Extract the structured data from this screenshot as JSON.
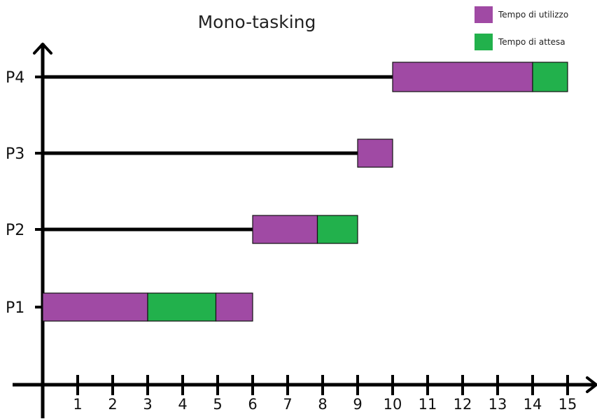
{
  "chart_data": {
    "type": "gantt",
    "title": "Mono-tasking",
    "x_ticks": [
      "1",
      "2",
      "3",
      "4",
      "5",
      "6",
      "7",
      "8",
      "9",
      "10",
      "11",
      "12",
      "13",
      "14",
      "15"
    ],
    "xlim": [
      0,
      15
    ],
    "legend_placement": "top-right",
    "legend": [
      {
        "key": "use",
        "label": "Tempo di utilizzo",
        "color": "#a04aa4"
      },
      {
        "key": "wait",
        "label": "Tempo di attesa",
        "color": "#22b14c"
      }
    ],
    "processes": [
      {
        "name": "P4",
        "arrival": 0,
        "segments": [
          {
            "type": "use",
            "start": 10,
            "end": 14
          },
          {
            "type": "wait",
            "start": 14,
            "end": 15
          }
        ]
      },
      {
        "name": "P3",
        "arrival": 0,
        "segments": [
          {
            "type": "use",
            "start": 9,
            "end": 10
          }
        ]
      },
      {
        "name": "P2",
        "arrival": 0,
        "segments": [
          {
            "type": "use",
            "start": 6,
            "end": 7.85
          },
          {
            "type": "wait",
            "start": 7.85,
            "end": 9
          }
        ]
      },
      {
        "name": "P1",
        "arrival": 0,
        "segments": [
          {
            "type": "use",
            "start": 0,
            "end": 3
          },
          {
            "type": "wait",
            "start": 3,
            "end": 4.95
          },
          {
            "type": "use",
            "start": 4.95,
            "end": 6
          }
        ]
      }
    ]
  }
}
